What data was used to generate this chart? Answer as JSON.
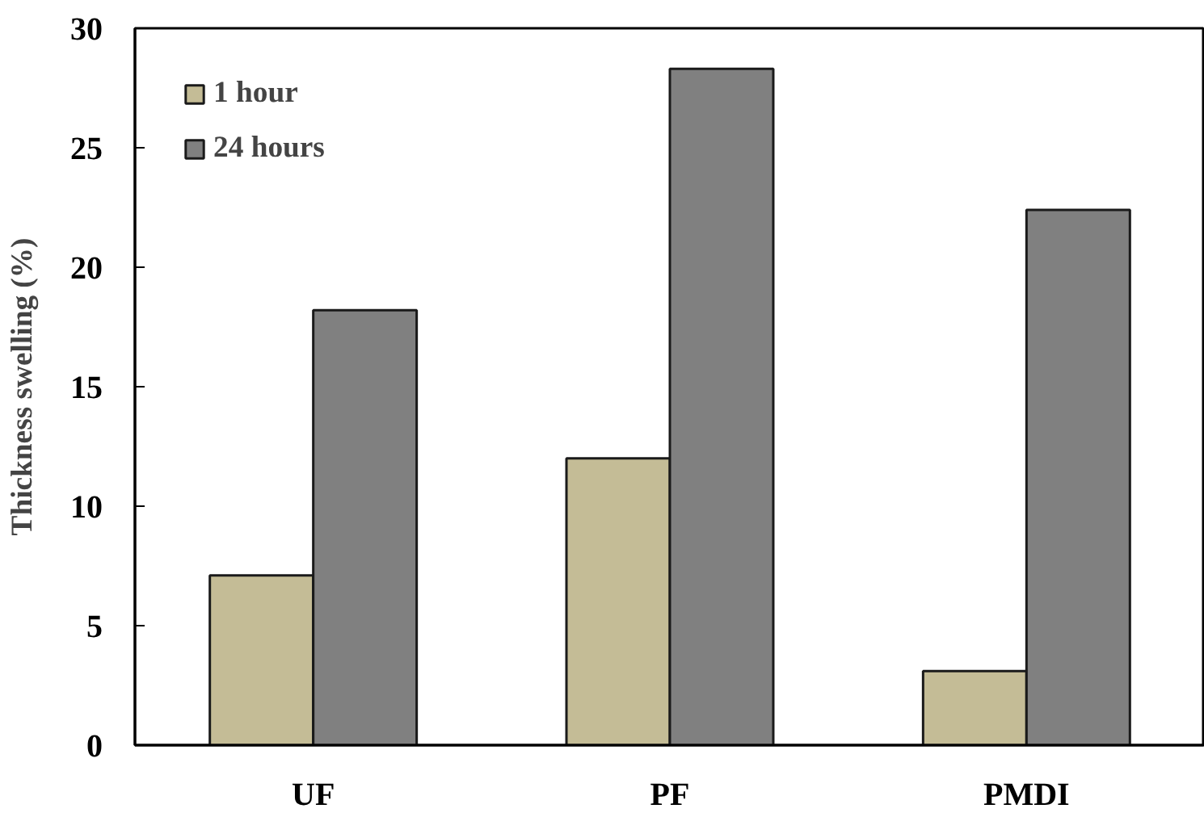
{
  "chart_data": {
    "type": "bar",
    "ylabel": "Thickness swelling (%)",
    "categories": [
      "UF",
      "PF",
      "PMDI"
    ],
    "series": [
      {
        "name": "1 hour",
        "color": "#c4bc96",
        "values": [
          7.1,
          12.0,
          3.1
        ]
      },
      {
        "name": "24 hours",
        "color": "#808080",
        "values": [
          18.2,
          28.3,
          22.4
        ]
      }
    ],
    "ylim": [
      0,
      30
    ],
    "yticks": [
      0,
      5,
      10,
      15,
      20,
      25,
      30
    ],
    "grid": false,
    "legend": "top left"
  }
}
